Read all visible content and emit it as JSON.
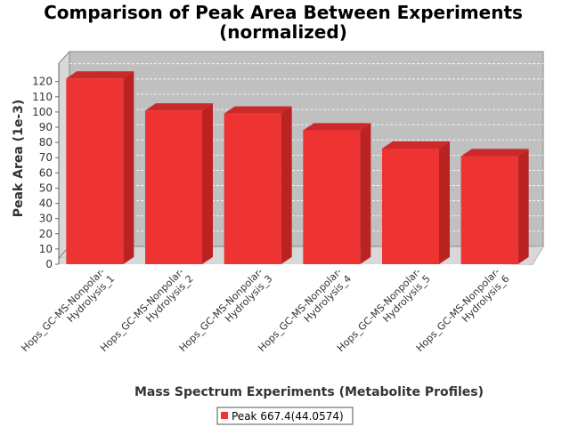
{
  "chart_data": {
    "type": "bar",
    "title_line1": "Comparison of Peak Area Between Experiments",
    "title_line2": "(normalized)",
    "xlabel": "Mass Spectrum Experiments (Metabolite Profiles)",
    "ylabel": "Peak Area (1e-3)",
    "ylim": [
      0,
      128
    ],
    "yticks": [
      0,
      10,
      20,
      30,
      40,
      50,
      60,
      70,
      80,
      90,
      100,
      110,
      120
    ],
    "categories": [
      [
        "Hops_GC-MS-Nonpolar-",
        "Hydrolysis_1"
      ],
      [
        "Hops_GC-MS-Nonpolar-",
        "Hydrolysis_2"
      ],
      [
        "Hops_GC-MS-Nonpolar-",
        "Hydrolysis_3"
      ],
      [
        "Hops_GC-MS-Nonpolar-",
        "Hydrolysis_4"
      ],
      [
        "Hops_GC-MS-Nonpolar-",
        "Hydrolysis_5"
      ],
      [
        "Hops_GC-MS-Nonpolar-",
        "Hydrolysis_6"
      ]
    ],
    "series": [
      {
        "name": "Peak 667.4(44.0574)",
        "values": [
          122,
          101,
          99,
          88,
          76,
          71
        ]
      }
    ],
    "colors": {
      "bar_front": "#ee3333",
      "bar_side": "#bb2222",
      "bar_top": "#cc2a2a",
      "plot_bg": "#c0c0c0",
      "wall": "#d8d8d8"
    },
    "grid": true,
    "legend_position": "bottom-center"
  }
}
